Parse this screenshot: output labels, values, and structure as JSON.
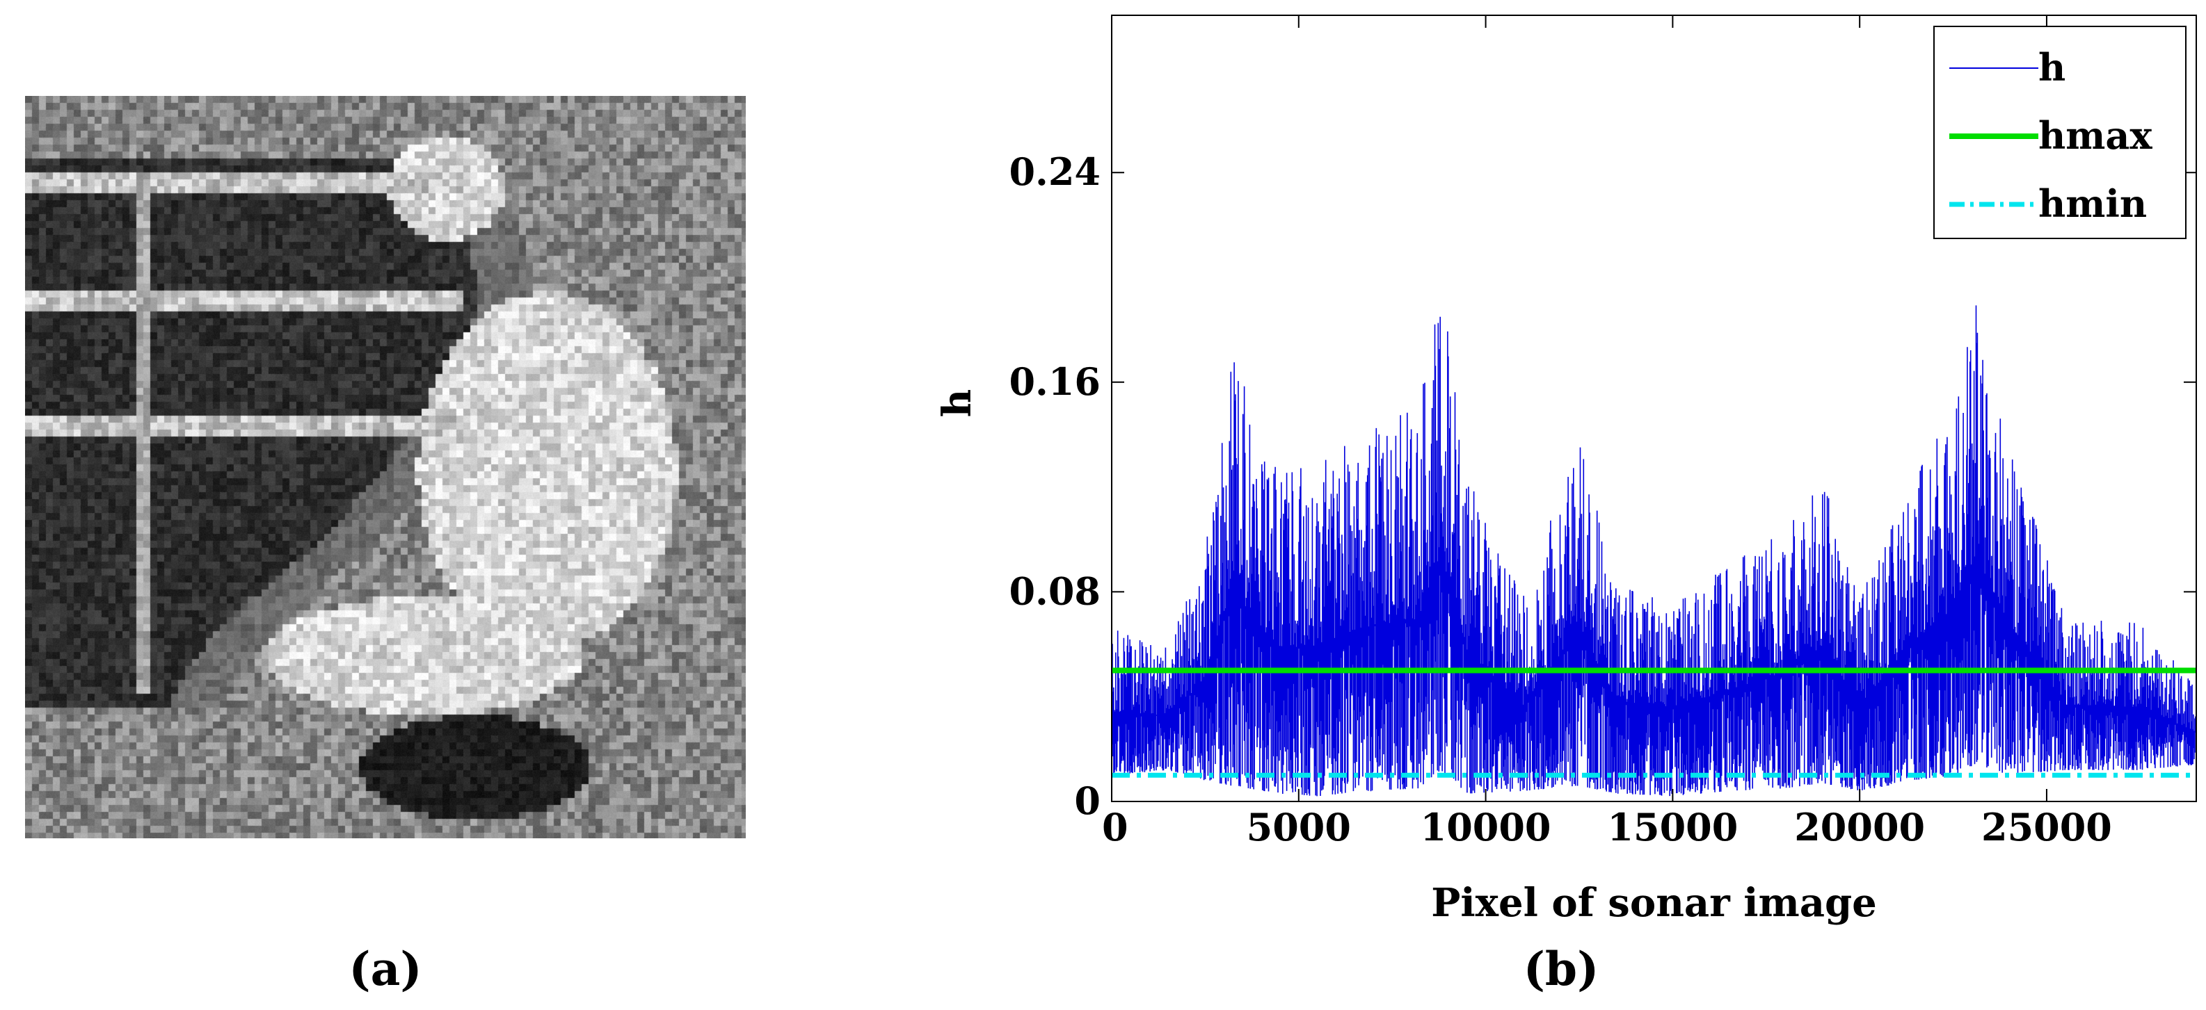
{
  "figure": {
    "label_a": "(a)",
    "label_b": "(b)"
  },
  "sonar_image": {
    "kind": "side-scan sonar grayscale image",
    "colors": {
      "dark": "#0d0d0d",
      "bright": "#f2f2f2",
      "background": "#8a8a8a"
    }
  },
  "chart_data": {
    "type": "line",
    "title": "",
    "xlabel": "Pixel of sonar image",
    "ylabel": "h",
    "xlim": [
      0,
      29000
    ],
    "ylim": [
      0,
      0.3
    ],
    "x_ticks": [
      0,
      5000,
      10000,
      15000,
      20000,
      25000
    ],
    "x_tick_labels": [
      "0",
      "5000",
      "10000",
      "15000",
      "20000",
      "25000"
    ],
    "y_ticks": [
      0,
      0.08,
      0.16,
      0.24
    ],
    "y_tick_labels": [
      "0",
      "0.08",
      "0.16",
      "0.24"
    ],
    "grid": false,
    "legend_position": "top-right",
    "series": [
      {
        "name": "h",
        "color": "#0000dd",
        "style": "solid-thin",
        "envelope_x": [
          0,
          1500,
          2500,
          3200,
          4500,
          5500,
          7000,
          8200,
          8800,
          9500,
          11000,
          12500,
          13500,
          15000,
          16500,
          18000,
          19000,
          20000,
          21500,
          22500,
          23100,
          24000,
          25500,
          27500,
          29000
        ],
        "envelope_upper": [
          0.066,
          0.06,
          0.095,
          0.175,
          0.125,
          0.13,
          0.145,
          0.15,
          0.2,
          0.125,
          0.078,
          0.14,
          0.082,
          0.078,
          0.09,
          0.105,
          0.125,
          0.078,
          0.13,
          0.15,
          0.195,
          0.14,
          0.07,
          0.068,
          0.045
        ],
        "envelope_lower": [
          0.01,
          0.012,
          0.008,
          0.006,
          0.003,
          0.002,
          0.004,
          0.005,
          0.012,
          0.003,
          0.004,
          0.006,
          0.003,
          0.002,
          0.004,
          0.005,
          0.007,
          0.004,
          0.008,
          0.01,
          0.014,
          0.01,
          0.012,
          0.012,
          0.014
        ]
      },
      {
        "name": "hmax",
        "color": "#00dd00",
        "style": "solid-thick",
        "x": [
          0,
          29000
        ],
        "y": [
          0.05,
          0.05
        ]
      },
      {
        "name": "hmin",
        "color": "#00e5ee",
        "style": "dash-dot",
        "x": [
          0,
          29000
        ],
        "y": [
          0.01,
          0.01
        ]
      }
    ]
  }
}
